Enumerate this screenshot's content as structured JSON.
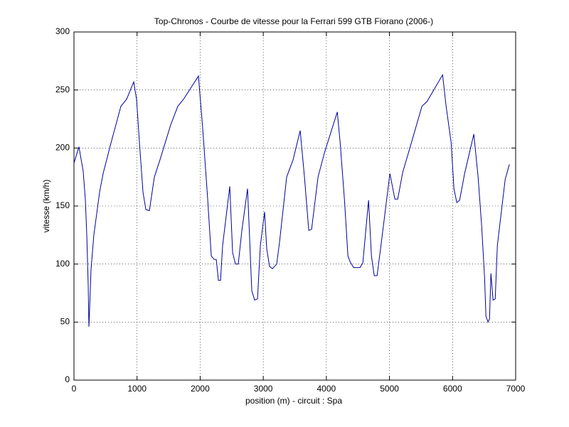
{
  "chart_data": {
    "type": "line",
    "title": "Top-Chronos - Courbe de vitesse pour la Ferrari 599 GTB Fiorano (2006-)",
    "x_label": "position (m) - circuit : Spa",
    "y_label": "vitesse (km/h)",
    "x": [
      0,
      79,
      146,
      180,
      203,
      225,
      237,
      248,
      270,
      315,
      406,
      462,
      575,
      744,
      834,
      947,
      992,
      1037,
      1094,
      1139,
      1195,
      1274,
      1364,
      1533,
      1646,
      1736,
      1973,
      2040,
      2119,
      2176,
      2221,
      2255,
      2289,
      2323,
      2356,
      2469,
      2514,
      2559,
      2604,
      2661,
      2751,
      2818,
      2864,
      2909,
      2954,
      3021,
      3055,
      3100,
      3145,
      3213,
      3258,
      3371,
      3473,
      3585,
      3653,
      3721,
      3766,
      3868,
      3970,
      4173,
      4218,
      4286,
      4342,
      4376,
      4432,
      4533,
      4578,
      4669,
      4714,
      4759,
      4804,
      4872,
      5007,
      5086,
      5131,
      5210,
      5334,
      5515,
      5594,
      5842,
      5898,
      5977,
      6022,
      6067,
      6112,
      6191,
      6337,
      6405,
      6462,
      6507,
      6529,
      6563,
      6586,
      6608,
      6642,
      6676,
      6710,
      6834,
      6901
    ],
    "series": [
      {
        "name": "vitesse",
        "color": "#0000a0",
        "values": [
          187,
          201,
          180,
          156,
          125,
          83,
          46,
          61,
          95,
          125,
          162,
          178,
          202,
          236,
          242,
          257,
          242,
          205,
          162,
          147,
          146,
          175,
          190,
          220,
          236,
          242,
          262,
          217,
          156,
          107,
          104,
          104,
          86,
          86,
          116,
          167,
          110,
          100,
          100,
          129,
          165,
          77,
          69,
          70,
          116,
          145,
          113,
          98,
          96,
          100,
          119,
          175,
          190,
          215,
          175,
          129,
          130,
          175,
          196,
          231,
          205,
          156,
          107,
          102,
          97,
          97,
          101,
          155,
          107,
          90,
          90,
          119,
          178,
          156,
          156,
          179,
          202,
          236,
          240,
          263,
          236,
          205,
          165,
          153,
          155,
          178,
          212,
          175,
          132,
          89,
          55,
          50,
          53,
          92,
          69,
          70,
          116,
          173,
          186
        ]
      }
    ],
    "xlim": [
      0,
      7000
    ],
    "ylim": [
      0,
      300
    ],
    "xticks": [
      0,
      1000,
      2000,
      3000,
      4000,
      5000,
      6000,
      7000
    ],
    "yticks": [
      0,
      50,
      100,
      150,
      200,
      250,
      300
    ],
    "grid": true
  }
}
